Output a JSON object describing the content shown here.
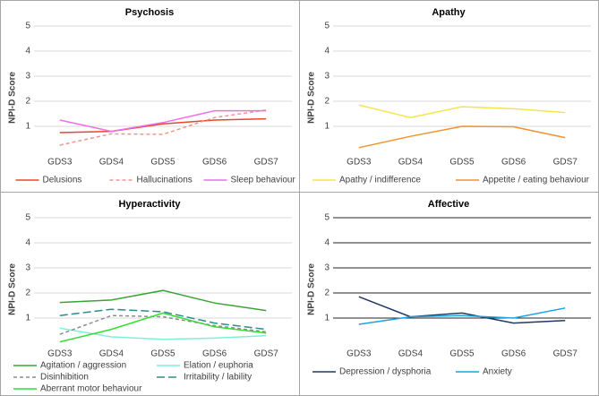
{
  "chart_data": [
    {
      "type": "line",
      "title": "Psychosis",
      "y_label": "NPI-D Score",
      "categories": [
        "GDS3",
        "GDS4",
        "GDS5",
        "GDS6",
        "GDS7"
      ],
      "ylim": [
        0,
        5
      ],
      "yticks": [
        1,
        2,
        3,
        4,
        5
      ],
      "grid": true,
      "grid_color": "#d9d9d9",
      "legend_columns": 3,
      "series": [
        {
          "name": "Delusions",
          "color": "#e8482a",
          "dash": "solid",
          "values": [
            0.75,
            0.8,
            1.1,
            1.25,
            1.3
          ]
        },
        {
          "name": "Hallucinations",
          "color": "#f4948c",
          "dash": "dashed",
          "values": [
            0.25,
            0.7,
            0.68,
            1.35,
            1.65
          ]
        },
        {
          "name": "Sleep behaviour",
          "color": "#ee6fe8",
          "dash": "solid",
          "values": [
            1.25,
            0.8,
            1.15,
            1.62,
            1.62
          ]
        }
      ]
    },
    {
      "type": "line",
      "title": "Apathy",
      "y_label": "NPI-D Score",
      "categories": [
        "GDS3",
        "GDS4",
        "GDS5",
        "GDS6",
        "GDS7"
      ],
      "ylim": [
        0,
        5
      ],
      "yticks": [
        1,
        2,
        3,
        4,
        5
      ],
      "grid": true,
      "grid_color": "#d9d9d9",
      "legend_columns": 2,
      "series": [
        {
          "name": "Apathy / indifference",
          "color": "#f2e64a",
          "dash": "solid",
          "values": [
            1.85,
            1.35,
            1.78,
            1.7,
            1.55
          ]
        },
        {
          "name": "Appetite / eating behaviour",
          "color": "#f0922e",
          "dash": "solid",
          "values": [
            0.15,
            0.6,
            1.0,
            0.98,
            0.55
          ]
        }
      ]
    },
    {
      "type": "line",
      "title": "Hyperactivity",
      "y_label": "NPI-D Score",
      "categories": [
        "GDS3",
        "GDS4",
        "GDS5",
        "GDS6",
        "GDS7"
      ],
      "ylim": [
        0,
        5
      ],
      "yticks": [
        1,
        2,
        3,
        4,
        5
      ],
      "grid": true,
      "grid_color": "#d9d9d9",
      "legend_columns": 2,
      "series": [
        {
          "name": "Agitation / aggression",
          "color": "#3aa33a",
          "dash": "solid",
          "values": [
            1.62,
            1.72,
            2.1,
            1.6,
            1.3
          ]
        },
        {
          "name": "Elation / euphoria",
          "color": "#7ff0d8",
          "dash": "solid",
          "values": [
            0.6,
            0.25,
            0.15,
            0.2,
            0.3
          ]
        },
        {
          "name": "Disinhibition",
          "color": "#8c8c8c",
          "dash": "dashed",
          "values": [
            0.35,
            1.1,
            1.05,
            0.7,
            0.45
          ]
        },
        {
          "name": "Irritability / lability",
          "color": "#2e8b8b",
          "dash": "long-dash",
          "values": [
            1.1,
            1.35,
            1.25,
            0.8,
            0.55
          ]
        },
        {
          "name": "Aberrant motor behaviour",
          "color": "#33dd33",
          "dash": "solid",
          "values": [
            0.05,
            0.55,
            1.2,
            0.65,
            0.4
          ]
        }
      ]
    },
    {
      "type": "line",
      "title": "Affective",
      "y_label": "NPI-D Score",
      "categories": [
        "GDS3",
        "GDS4",
        "GDS5",
        "GDS6",
        "GDS7"
      ],
      "ylim": [
        0,
        5
      ],
      "yticks": [
        1,
        2,
        3,
        4,
        5
      ],
      "grid": true,
      "grid_color": "#262626",
      "legend_columns": 2,
      "series": [
        {
          "name": "Depression / dysphoria",
          "color": "#1f3864",
          "dash": "solid",
          "values": [
            1.85,
            1.05,
            1.2,
            0.8,
            0.9
          ]
        },
        {
          "name": "Anxiety",
          "color": "#1aa3dd",
          "dash": "solid",
          "values": [
            0.75,
            1.05,
            1.1,
            1.0,
            1.4
          ]
        }
      ]
    }
  ]
}
